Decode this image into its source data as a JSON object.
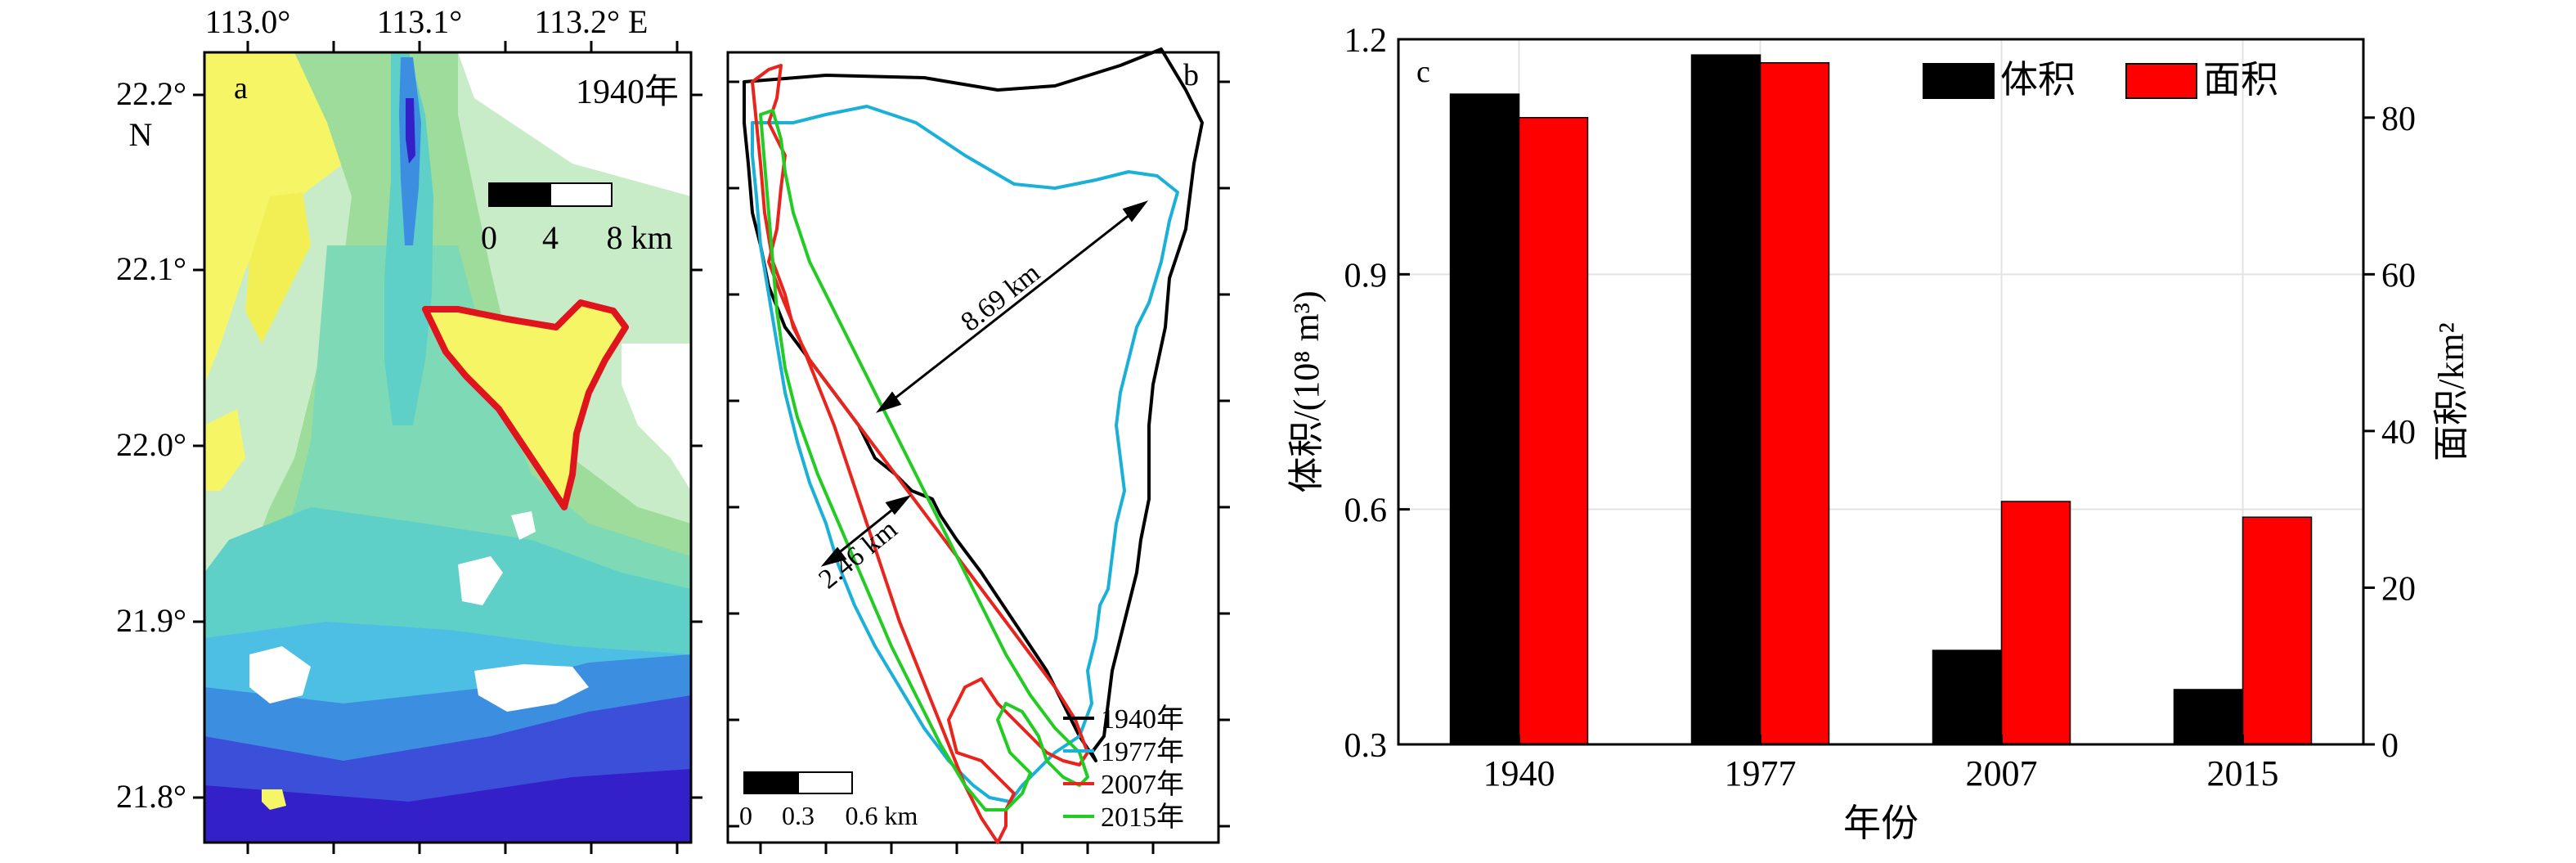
{
  "panel_a": {
    "label": "a",
    "year_label": "1940年",
    "top_ticks": [
      "113.0°",
      "113.1°",
      "113.2° E"
    ],
    "left_ticks": [
      "22.2°",
      "22.1°",
      "22.0°",
      "21.9°",
      "21.8°"
    ],
    "north_label": "N",
    "scale_ticks": [
      "0",
      "4",
      "8 km"
    ]
  },
  "panel_b": {
    "label": "b",
    "long_distance": "8.69 km",
    "short_distance": "2.46 km",
    "scale_ticks": [
      "0",
      "0.3",
      "0.6 km"
    ],
    "legend": [
      {
        "label": "1940年",
        "color": "#000000"
      },
      {
        "label": "1977年",
        "color": "#1ab0d8"
      },
      {
        "label": "2007年",
        "color": "#e8241c"
      },
      {
        "label": "2015年",
        "color": "#22cc22"
      }
    ]
  },
  "chart_data": {
    "type": "bar",
    "panel_label": "c",
    "categories": [
      "1940",
      "1977",
      "2007",
      "2015"
    ],
    "xlabel": "年份",
    "ylabel_left": "体积/(10⁸ m³)",
    "ylabel_right": "面积/km²",
    "ylim_left": [
      0.3,
      1.2
    ],
    "ylim_right": [
      0,
      90
    ],
    "yticks_left": [
      "0.3",
      "0.6",
      "0.9",
      "1.2"
    ],
    "yticks_right": [
      "0",
      "20",
      "40",
      "60",
      "80"
    ],
    "grid": true,
    "legend_position": "top-right",
    "series": [
      {
        "name": "体积",
        "axis": "left",
        "color": "#000000",
        "values": [
          1.13,
          1.18,
          0.42,
          0.37
        ]
      },
      {
        "name": "面积",
        "axis": "right",
        "color": "#ff0000",
        "values": [
          80,
          87,
          31,
          29
        ]
      }
    ]
  }
}
